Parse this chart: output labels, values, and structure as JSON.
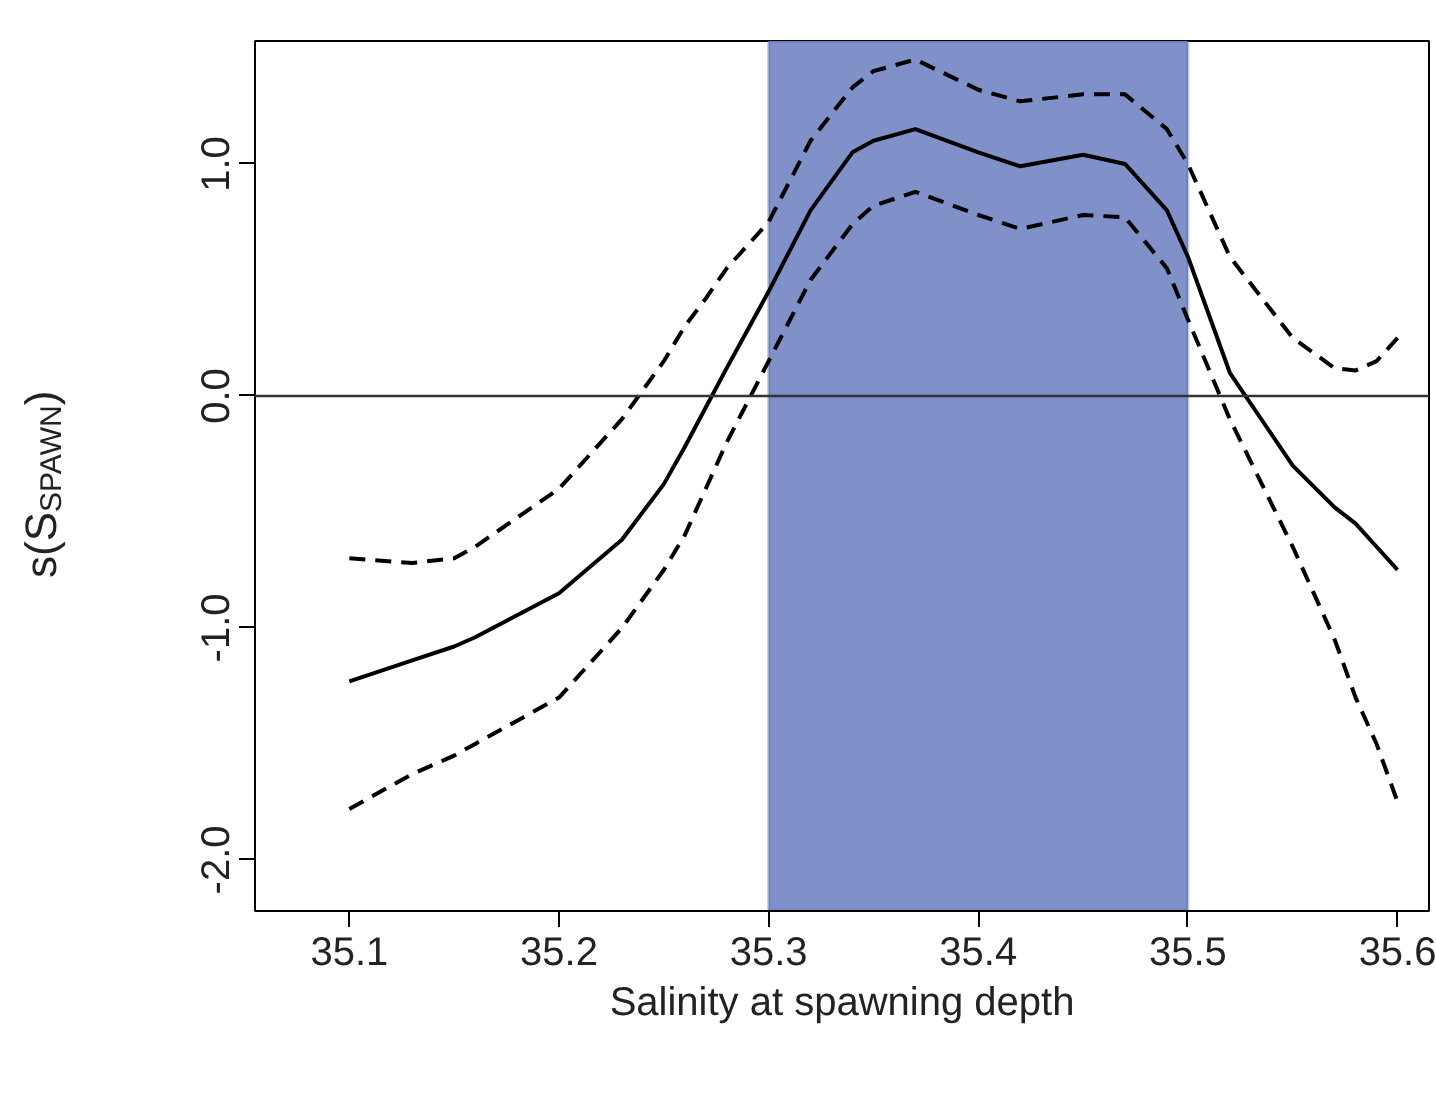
{
  "chart_data": {
    "type": "line",
    "xlabel": "Salinity at spawning depth",
    "ylabel": "s(S$_{SPAWN}$)",
    "x": [
      35.1,
      35.13,
      35.15,
      35.16,
      35.2,
      35.23,
      35.25,
      35.26,
      35.27,
      35.28,
      35.3,
      35.32,
      35.34,
      35.35,
      35.37,
      35.4,
      35.42,
      35.45,
      35.47,
      35.49,
      35.5,
      35.52,
      35.55,
      35.57,
      35.58,
      35.59,
      35.6
    ],
    "series": [
      {
        "color": "#000000",
        "line_style": "solid",
        "values": [
          -1.23,
          -1.14,
          -1.08,
          -1.04,
          -0.85,
          -0.62,
          -0.38,
          -0.22,
          -0.05,
          0.12,
          0.45,
          0.8,
          1.05,
          1.1,
          1.15,
          1.05,
          0.99,
          1.04,
          1.0,
          0.8,
          0.6,
          0.1,
          -0.3,
          -0.48,
          -0.55,
          -0.65,
          -0.75
        ]
      },
      {
        "color": "#000000",
        "line_style": "dashed",
        "values": [
          -0.7,
          -0.72,
          -0.7,
          -0.65,
          -0.4,
          -0.1,
          0.15,
          0.3,
          0.42,
          0.55,
          0.75,
          1.1,
          1.33,
          1.4,
          1.45,
          1.32,
          1.27,
          1.3,
          1.3,
          1.15,
          1.0,
          0.6,
          0.25,
          0.12,
          0.11,
          0.15,
          0.25
        ]
      },
      {
        "color": "#000000",
        "line_style": "dashed",
        "values": [
          -1.78,
          -1.63,
          -1.55,
          -1.5,
          -1.3,
          -1.0,
          -0.75,
          -0.6,
          -0.4,
          -0.2,
          0.15,
          0.5,
          0.74,
          0.82,
          0.88,
          0.78,
          0.72,
          0.78,
          0.77,
          0.55,
          0.33,
          -0.1,
          -0.65,
          -1.05,
          -1.3,
          -1.5,
          -1.75
        ]
      }
    ],
    "xlim": [
      35.055,
      35.615
    ],
    "ylim": [
      -2.22,
      1.53
    ],
    "xticks": [
      35.1,
      35.2,
      35.3,
      35.4,
      35.5,
      35.6
    ],
    "yticks": [
      {
        "value": -2,
        "label": "-2.0"
      },
      {
        "value": -1,
        "label": "-1.0"
      },
      {
        "value": 0,
        "label": "0.0"
      },
      {
        "value": 1,
        "label": "1.0"
      }
    ],
    "grid": false,
    "marker": "none",
    "ref_lines": [
      {
        "axis": "y",
        "value": 0,
        "color": "#333333"
      }
    ],
    "bands": [
      {
        "axis": "x",
        "from": 35.3,
        "to": 35.5,
        "color": "#7f91c8"
      }
    ]
  }
}
